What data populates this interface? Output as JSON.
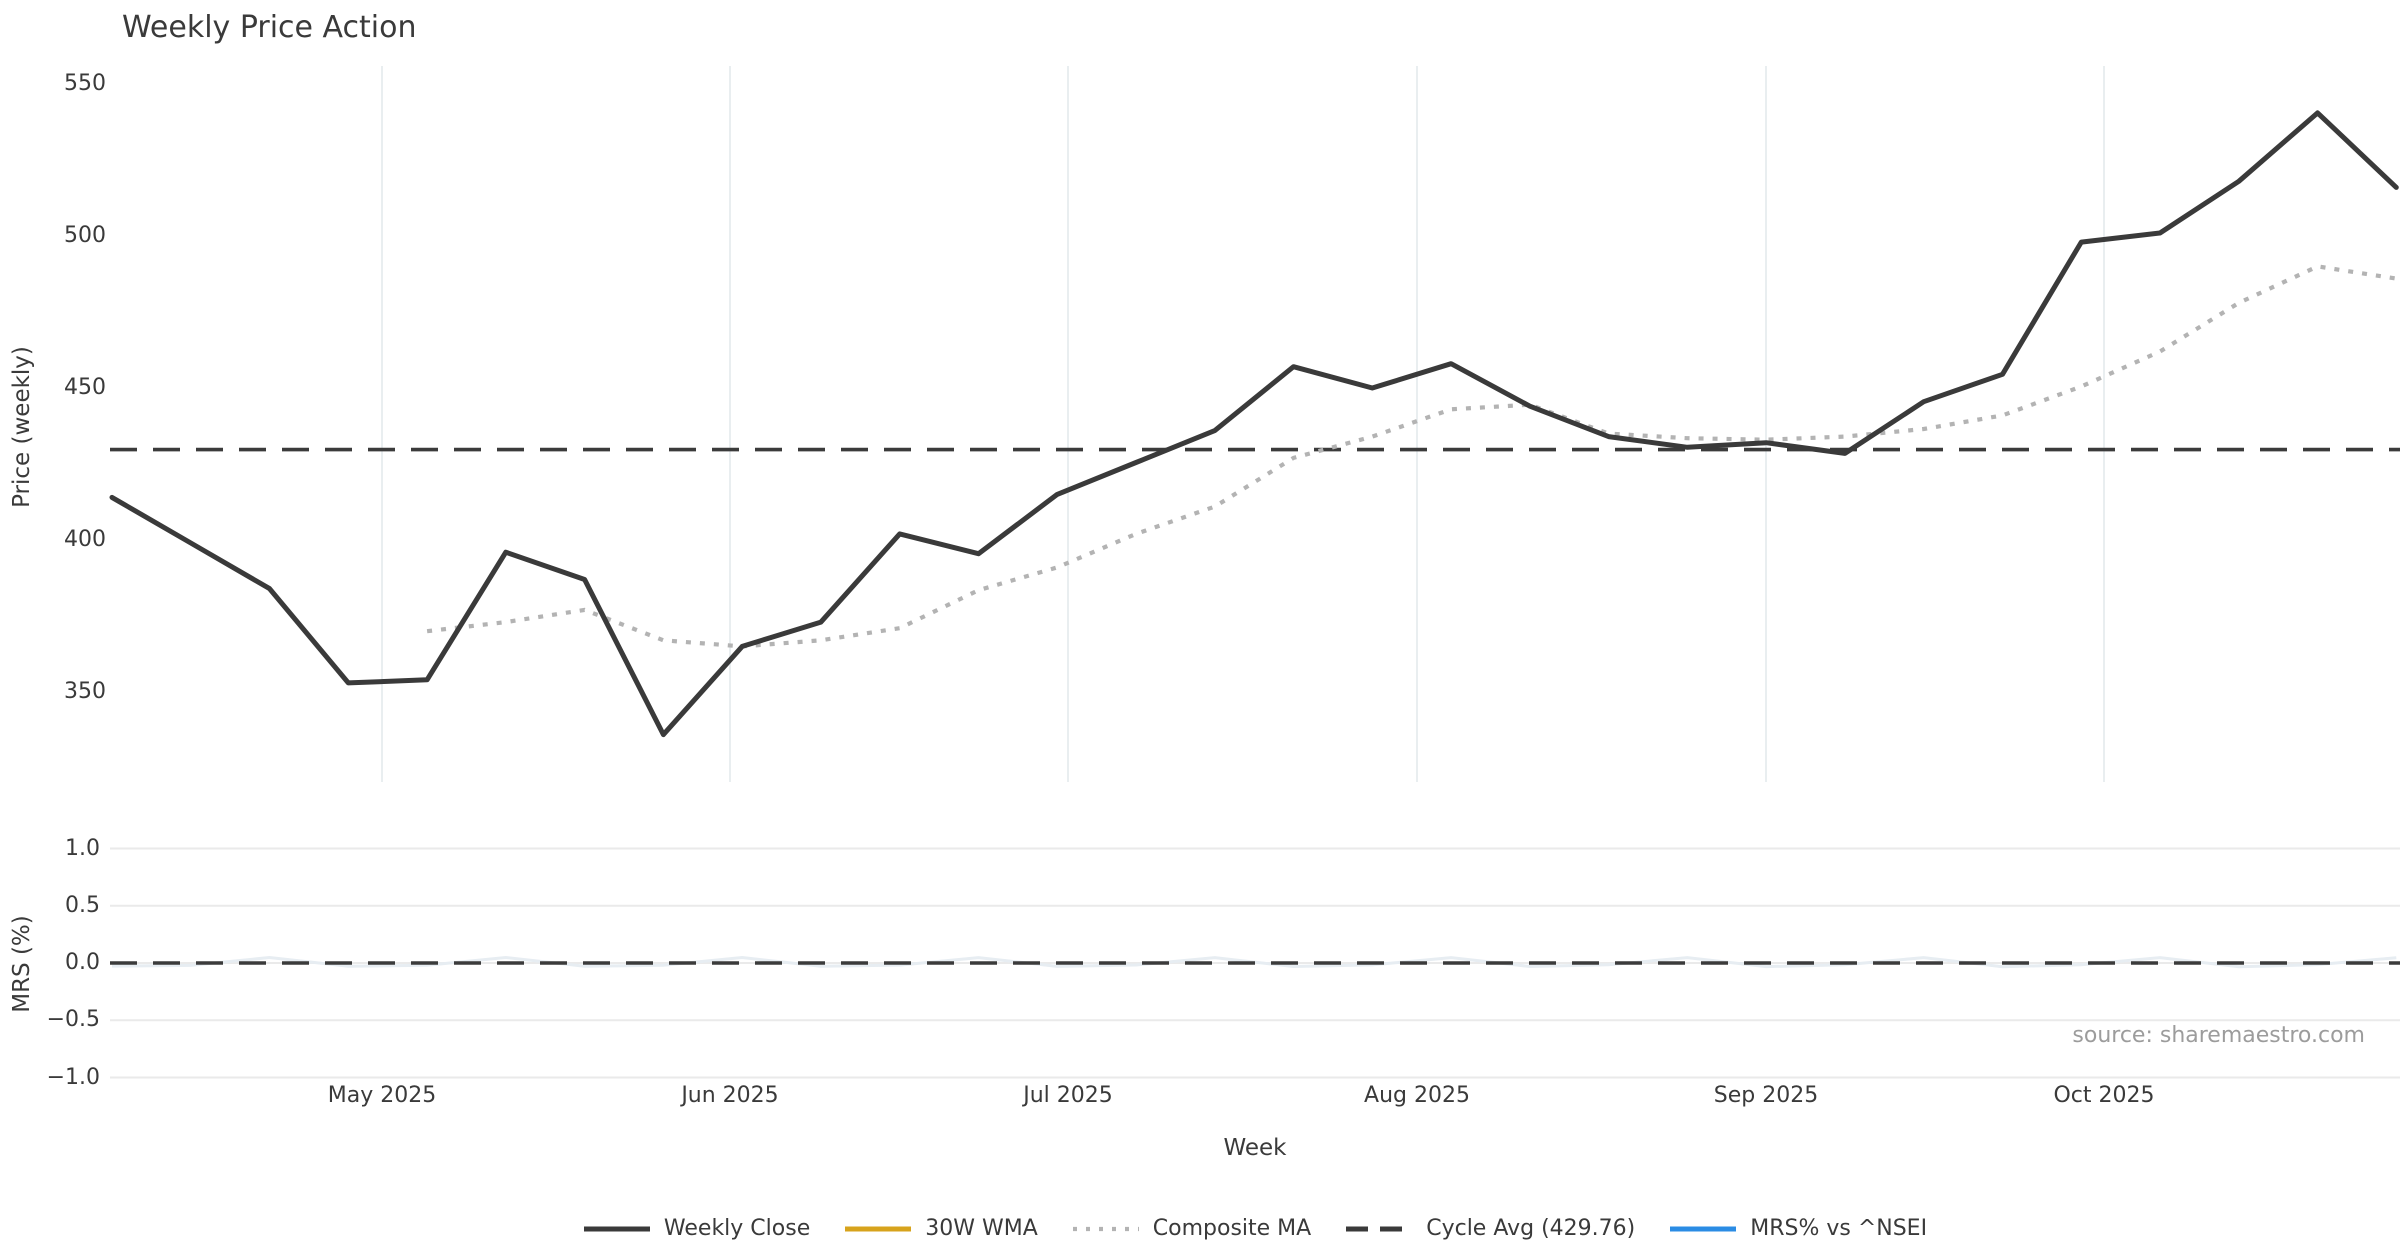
{
  "title": "Weekly Price Action",
  "source_text": "source: sharemaestro.com",
  "axes": {
    "xlabel": "Week",
    "ylabel_top": "Price (weekly)",
    "ylabel_bottom": "MRS (%)",
    "yticks_top": [
      "550",
      "500",
      "450",
      "400",
      "350"
    ],
    "ytick_values_top": [
      550,
      500,
      450,
      400,
      350
    ],
    "yticks_bottom": [
      "1.0",
      "0.5",
      "0.0",
      "−0.5",
      "−1.0"
    ],
    "ytick_values_bottom": [
      1.0,
      0.5,
      0.0,
      -0.5,
      -1.0
    ],
    "xticks": [
      "May 2025",
      "Jun 2025",
      "Jul 2025",
      "Aug 2025",
      "Sep 2025",
      "Oct 2025"
    ]
  },
  "legend": [
    {
      "label": "Weekly Close",
      "color": "#3a3a3a",
      "style": "solid"
    },
    {
      "label": "30W WMA",
      "color": "#d7a31c",
      "style": "solid"
    },
    {
      "label": "Composite MA",
      "color": "#b3b3b3",
      "style": "dotted"
    },
    {
      "label": "Cycle Avg (429.76)",
      "color": "#3a3a3a",
      "style": "dashed"
    },
    {
      "label": "MRS% vs ^NSEI",
      "color": "#2b8ce4",
      "style": "solid"
    }
  ],
  "chart_data": {
    "type": "line",
    "title": "Weekly Price Action",
    "xlabel": "Week",
    "x_week_starts": [
      "Apr 7",
      "Apr 14",
      "Apr 21",
      "Apr 28",
      "May 5",
      "May 12",
      "May 19",
      "May 26",
      "Jun 2",
      "Jun 9",
      "Jun 16",
      "Jun 23",
      "Jun 30",
      "Jul 7",
      "Jul 14",
      "Jul 21",
      "Jul 28",
      "Aug 4",
      "Aug 11",
      "Aug 18",
      "Aug 25",
      "Sep 1",
      "Sep 8",
      "Sep 15",
      "Sep 22",
      "Sep 29",
      "Oct 6",
      "Oct 13",
      "Oct 20",
      "Oct 27"
    ],
    "year": "2025",
    "panels": [
      {
        "name": "price",
        "ylabel": "Price (weekly)",
        "ylim": [
          320,
          556
        ],
        "yticks": [
          350,
          400,
          450,
          500,
          550
        ],
        "grid": "vertical-months"
      },
      {
        "name": "mrs",
        "ylabel": "MRS (%)",
        "ylim": [
          -1.07,
          1.07
        ],
        "yticks": [
          -1.0,
          -0.5,
          0.0,
          0.5,
          1.0
        ],
        "grid": "horizontal"
      }
    ],
    "series": [
      {
        "name": "Weekly Close",
        "panel": "price",
        "color": "#3a3a3a",
        "style": "solid",
        "values": [
          414,
          399,
          384,
          353,
          354,
          396,
          387,
          336,
          365,
          373,
          402,
          395.5,
          415,
          425.5,
          436,
          457,
          450,
          458,
          444,
          434,
          430.5,
          432,
          428.5,
          445.5,
          454.5,
          498,
          501,
          518,
          540.5,
          516
        ]
      },
      {
        "name": "30W WMA",
        "panel": "price",
        "color": "#d7a31c",
        "style": "solid",
        "values": null,
        "note": "legend entry only; no curve visible in plot"
      },
      {
        "name": "Composite MA",
        "panel": "price",
        "color": "#b3b3b3",
        "style": "dotted",
        "start_index": 4,
        "values": [
          370,
          373,
          377,
          367,
          365,
          367,
          371,
          383.5,
          391,
          402,
          411,
          427,
          434,
          443,
          444.5,
          435,
          433.5,
          433,
          434,
          436.5,
          441,
          450.5,
          462,
          478,
          490,
          486
        ]
      },
      {
        "name": "Cycle Avg",
        "panel": "price",
        "color": "#3a3a3a",
        "style": "dashed",
        "constant_value": 429.76
      },
      {
        "name": "MRS% vs ^NSEI",
        "panel": "mrs",
        "color": "#2b8ce4",
        "style": "solid",
        "values": null,
        "note": "legend entry only; only a faint trace hugging 0 is visible"
      },
      {
        "name": "MRS zero line",
        "panel": "mrs",
        "color": "#3a3a3a",
        "style": "dashed",
        "constant_value": 0.0
      }
    ],
    "legend_position": "bottom-center",
    "grid": "light"
  }
}
